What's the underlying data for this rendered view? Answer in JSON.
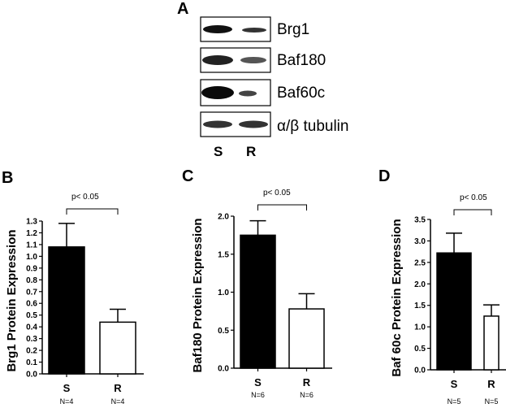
{
  "panel_a": {
    "letter": "A",
    "bands": [
      {
        "label": "Brg1"
      },
      {
        "label": "Baf180"
      },
      {
        "label": "Baf60c"
      },
      {
        "label": "α/β tubulin"
      }
    ],
    "lanes": [
      "S",
      "R"
    ]
  },
  "chart_data": [
    {
      "letter": "B",
      "type": "bar",
      "categories": [
        "S",
        "R"
      ],
      "values": [
        1.08,
        0.44
      ],
      "errors": [
        0.2,
        0.11
      ],
      "colors": [
        "#000000",
        "#ffffff"
      ],
      "n_labels": [
        "N=4",
        "N=4"
      ],
      "ylabel": "Brg1 Protein Expression",
      "ylim": [
        0,
        1.3
      ],
      "yticks": [
        0.0,
        0.1,
        0.2,
        0.3,
        0.4,
        0.5,
        0.6,
        0.7,
        0.8,
        0.9,
        1.0,
        1.1,
        1.2,
        1.3
      ],
      "ytick_labels": [
        "0.0",
        "0.1",
        "0.2",
        "0.3",
        "0.4",
        "0.5",
        "0.6",
        "0.7",
        "0.8",
        "0.9",
        "1.0",
        "1.1",
        "1.2",
        "1.3"
      ],
      "annotation": "p< 0.05"
    },
    {
      "letter": "C",
      "type": "bar",
      "categories": [
        "S",
        "R"
      ],
      "values": [
        1.75,
        0.78
      ],
      "errors": [
        0.19,
        0.2
      ],
      "colors": [
        "#000000",
        "#ffffff"
      ],
      "n_labels": [
        "N=6",
        "N=6"
      ],
      "ylabel": "Baf180 Protein Expression",
      "ylim": [
        0,
        2.0
      ],
      "yticks": [
        0.0,
        0.5,
        1.0,
        1.5,
        2.0
      ],
      "ytick_labels": [
        "0.0",
        "0.5",
        "1.0",
        "1.5",
        "2.0"
      ],
      "annotation": "p< 0.05"
    },
    {
      "letter": "D",
      "type": "bar",
      "categories": [
        "S",
        "R"
      ],
      "values": [
        2.72,
        1.25
      ],
      "errors": [
        0.46,
        0.26
      ],
      "colors": [
        "#000000",
        "#ffffff"
      ],
      "n_labels": [
        "N=5",
        "N=5"
      ],
      "ylabel": "Baf 60c Protein Expression",
      "ylim": [
        0,
        3.5
      ],
      "yticks": [
        0.0,
        0.5,
        1.0,
        1.5,
        2.0,
        2.5,
        3.0,
        3.5
      ],
      "ytick_labels": [
        "0.0",
        "0.5",
        "1.0",
        "1.5",
        "2.0",
        "2.5",
        "3.0",
        "3.5"
      ],
      "annotation": "p< 0.05"
    }
  ]
}
